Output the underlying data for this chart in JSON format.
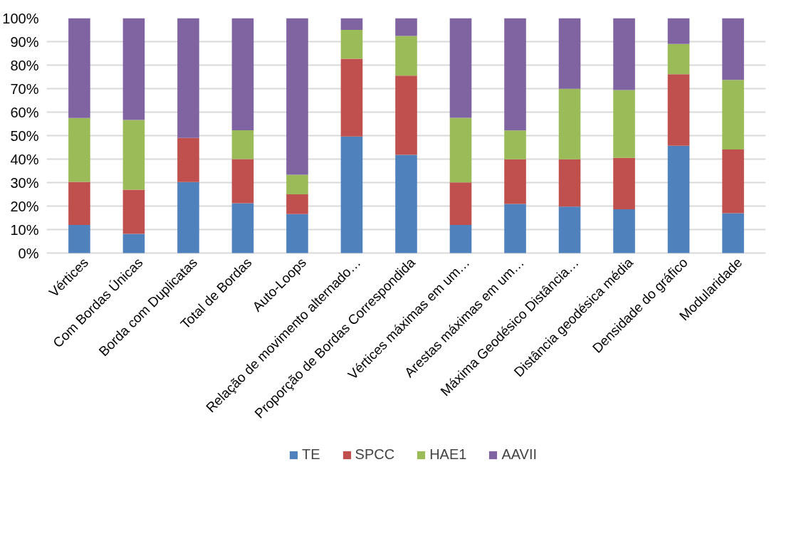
{
  "chart_data": {
    "type": "bar",
    "stacked": true,
    "categories": [
      "Vértices",
      "Com Bordas Únicas",
      "Borda com Duplicatas",
      "Total de Bordas",
      "Auto-Loops",
      "Relação de movimento alternado…",
      "Proporção de Bordas Correspondida",
      "Vértices máximas em um…",
      "Arestas máximas em um…",
      "Máxima Geodésico Distância…",
      "Distância geodésica média",
      "Densidade do gráfico",
      "Modularidade"
    ],
    "series": [
      {
        "name": "TE",
        "color": "#4f81bd",
        "values": [
          12,
          8.2,
          30.2,
          21.2,
          16.6,
          49.6,
          41.8,
          12,
          20.9,
          19.8,
          18.6,
          45.7,
          17
        ]
      },
      {
        "name": "SPCC",
        "color": "#c0504d",
        "values": [
          18.3,
          18.8,
          18.8,
          18.8,
          8.4,
          33.1,
          33.7,
          18.1,
          19,
          20.1,
          21.9,
          30.4,
          27.1
        ]
      },
      {
        "name": "HAE1",
        "color": "#9bbb59",
        "values": [
          27.2,
          29.7,
          0,
          12.3,
          8.3,
          12.3,
          16.9,
          27.5,
          12.3,
          30,
          28.9,
          12.9,
          29.6
        ]
      },
      {
        "name": "AAVII",
        "color": "#8064a2",
        "values": [
          42.5,
          43.3,
          51,
          47.7,
          66.7,
          5,
          7.6,
          42.4,
          47.8,
          30.1,
          30.6,
          11,
          26.3
        ]
      }
    ],
    "ylim": [
      0,
      100
    ],
    "yticks": [
      {
        "value": 0,
        "label": "0%"
      },
      {
        "value": 10,
        "label": "10%"
      },
      {
        "value": 20,
        "label": "20%"
      },
      {
        "value": 30,
        "label": "30%"
      },
      {
        "value": 40,
        "label": "40%"
      },
      {
        "value": 50,
        "label": "50%"
      },
      {
        "value": 60,
        "label": "60%"
      },
      {
        "value": 70,
        "label": "70%"
      },
      {
        "value": 80,
        "label": "80%"
      },
      {
        "value": 90,
        "label": "90%"
      },
      {
        "value": 100,
        "label": "100%"
      }
    ],
    "grid": "y",
    "legend": "bottom"
  }
}
